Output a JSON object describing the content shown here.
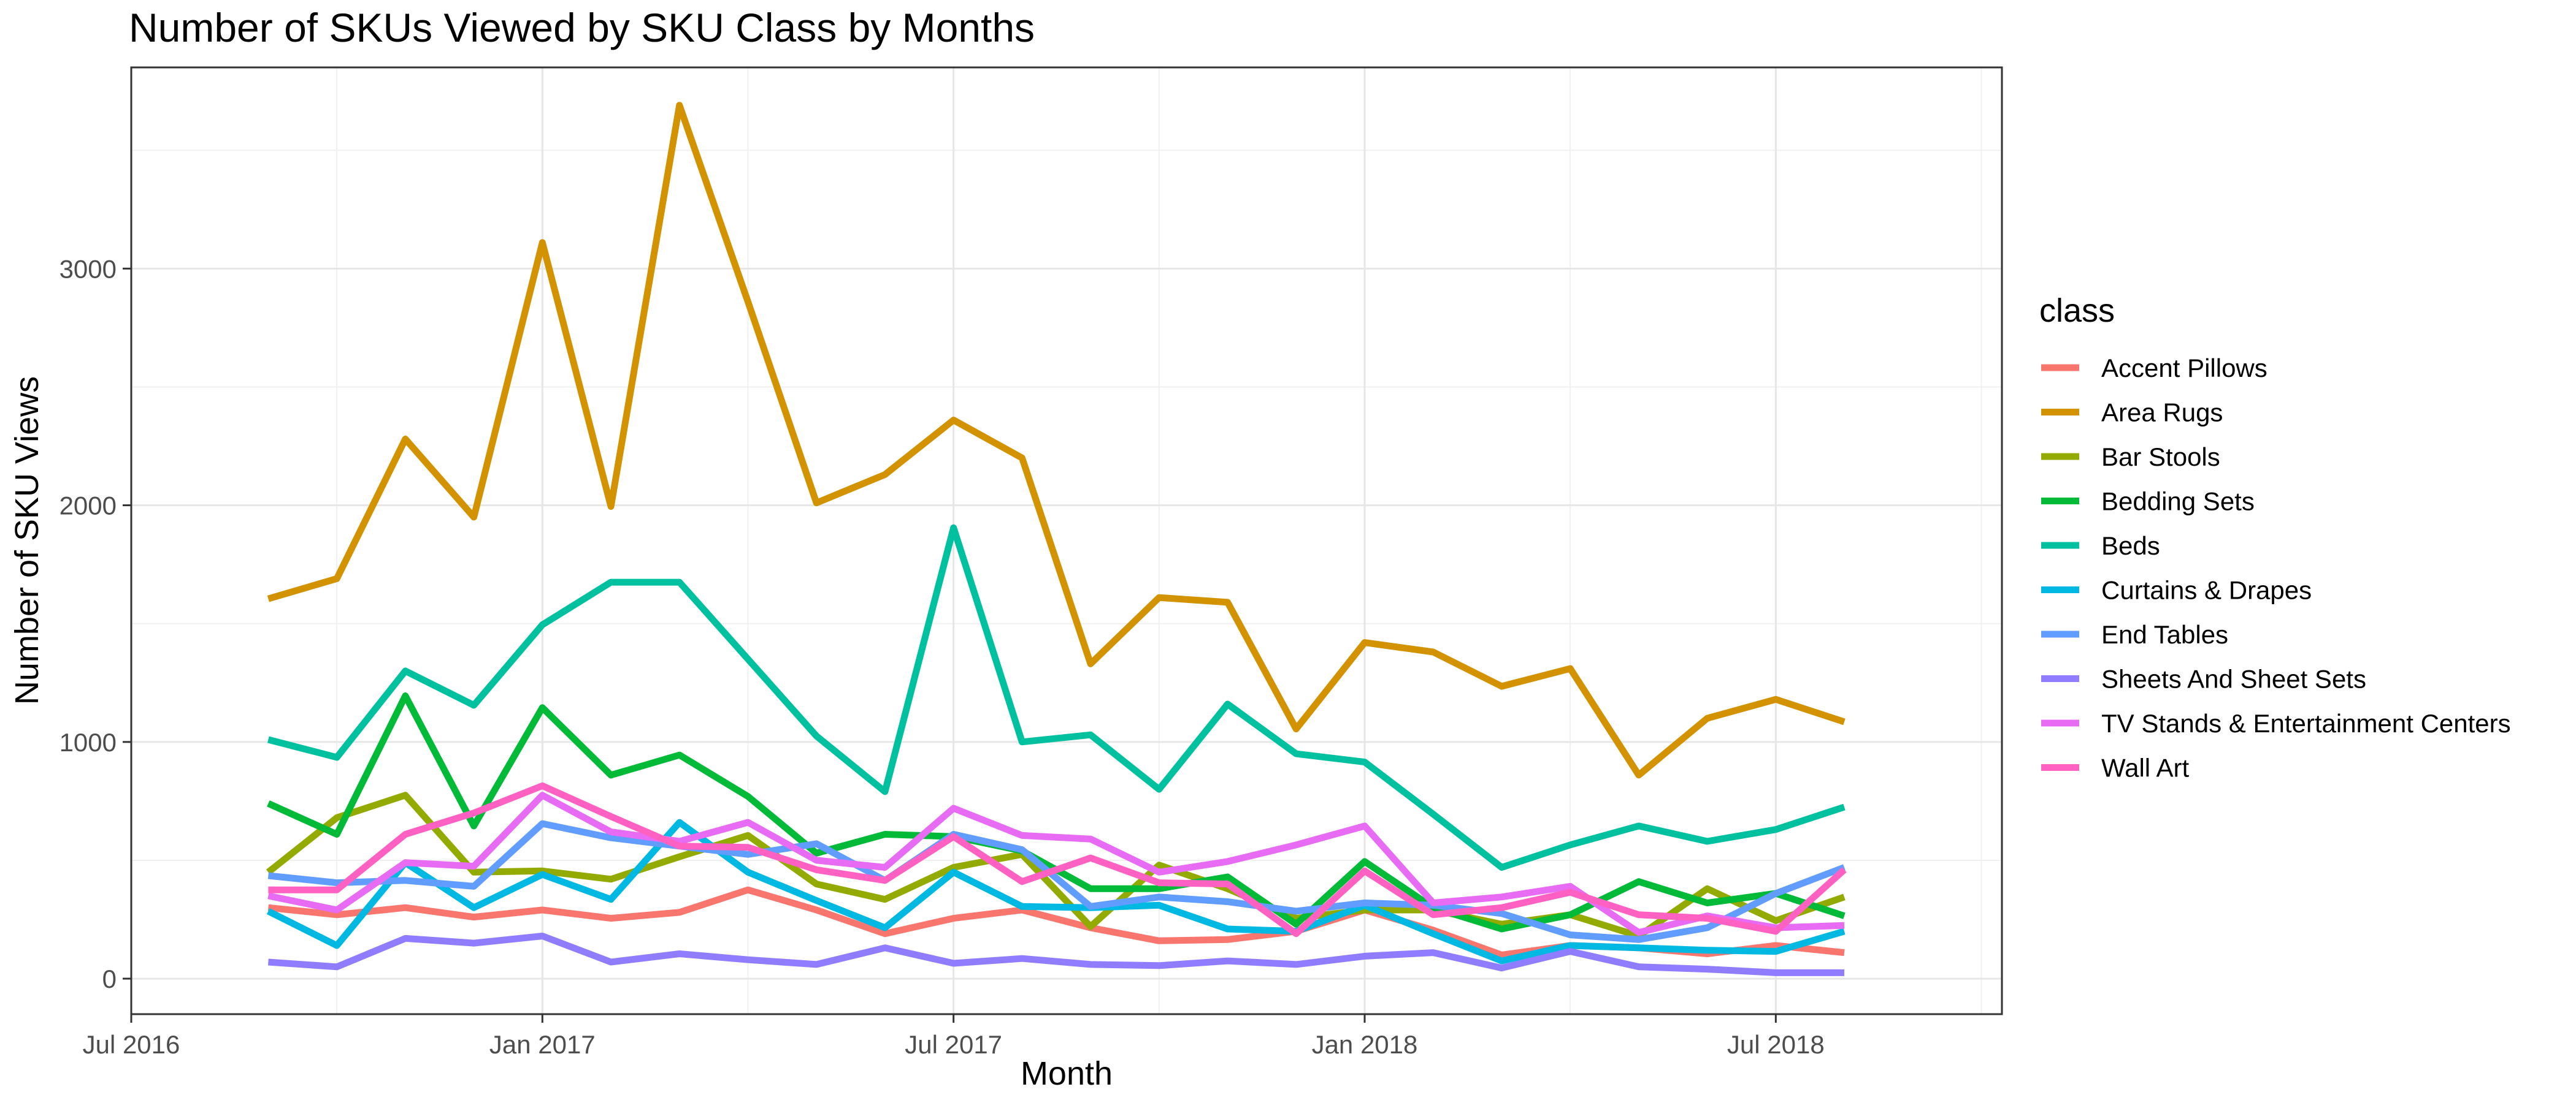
{
  "chart_data": {
    "type": "line",
    "title": "Number of SKUs Viewed by SKU Class by Months",
    "xlabel": "Month",
    "ylabel": "Number of SKU Views",
    "x_ticks": [
      "Jul 2016",
      "Jan 2017",
      "Jul 2017",
      "Jan 2018",
      "Jul 2018"
    ],
    "y_ticks": [
      "0",
      "1000",
      "2000",
      "3000"
    ],
    "ylim": [
      -150,
      3850
    ],
    "grid": true,
    "legend": {
      "title": "class",
      "position": "right"
    },
    "x": [
      "2016-09",
      "2016-10",
      "2016-11",
      "2016-12",
      "2017-01",
      "2017-02",
      "2017-03",
      "2017-04",
      "2017-05",
      "2017-06",
      "2017-07",
      "2017-08",
      "2017-09",
      "2017-10",
      "2017-11",
      "2017-12",
      "2018-01",
      "2018-02",
      "2018-03",
      "2018-04",
      "2018-05",
      "2018-06",
      "2018-07",
      "2018-08"
    ],
    "series": [
      {
        "name": "Accent Pillows",
        "color": "#F8766D",
        "values": [
          300,
          270,
          300,
          260,
          290,
          255,
          280,
          375,
          290,
          190,
          255,
          290,
          215,
          160,
          165,
          200,
          290,
          205,
          100,
          140,
          130,
          105,
          140,
          110
        ]
      },
      {
        "name": "Area Rugs",
        "color": "#D39200",
        "values": [
          1605,
          1690,
          2280,
          1950,
          3110,
          1995,
          3690,
          2860,
          2010,
          2130,
          2360,
          2200,
          1330,
          1610,
          1590,
          1055,
          1420,
          1380,
          1235,
          1310,
          860,
          1100,
          1180,
          1085
        ]
      },
      {
        "name": "Bar Stools",
        "color": "#93AA00",
        "values": [
          450,
          680,
          775,
          450,
          455,
          420,
          515,
          605,
          400,
          335,
          470,
          525,
          220,
          480,
          380,
          255,
          290,
          290,
          230,
          270,
          180,
          380,
          245,
          345
        ]
      },
      {
        "name": "Bedding Sets",
        "color": "#00BA38",
        "values": [
          740,
          610,
          1195,
          645,
          1145,
          860,
          945,
          770,
          530,
          610,
          600,
          540,
          380,
          380,
          430,
          230,
          495,
          300,
          210,
          270,
          410,
          320,
          360,
          265
        ]
      },
      {
        "name": "Beds",
        "color": "#00C19F",
        "values": [
          1010,
          935,
          1300,
          1155,
          1495,
          1675,
          1675,
          1350,
          1025,
          790,
          1905,
          1000,
          1030,
          800,
          1160,
          950,
          915,
          695,
          470,
          565,
          645,
          580,
          630,
          725
        ]
      },
      {
        "name": "Curtains & Drapes",
        "color": "#00B9E3",
        "values": [
          285,
          140,
          490,
          300,
          440,
          335,
          660,
          450,
          330,
          215,
          450,
          305,
          300,
          310,
          210,
          200,
          310,
          190,
          75,
          140,
          130,
          120,
          115,
          200
        ]
      },
      {
        "name": "End Tables",
        "color": "#619CFF",
        "values": [
          435,
          405,
          415,
          390,
          655,
          595,
          560,
          525,
          570,
          415,
          610,
          545,
          305,
          345,
          325,
          285,
          320,
          310,
          275,
          185,
          165,
          215,
          360,
          470
        ]
      },
      {
        "name": "Sheets And Sheet Sets",
        "color": "#8F7CFF",
        "values": [
          70,
          50,
          170,
          150,
          180,
          70,
          105,
          80,
          60,
          130,
          65,
          85,
          60,
          55,
          75,
          60,
          95,
          110,
          45,
          115,
          50,
          40,
          25,
          25
        ]
      },
      {
        "name": "TV Stands & Entertainment Centers",
        "color": "#E76BF3",
        "values": [
          350,
          290,
          490,
          475,
          775,
          620,
          580,
          660,
          500,
          470,
          720,
          605,
          590,
          450,
          495,
          565,
          645,
          320,
          345,
          390,
          195,
          265,
          215,
          225
        ]
      },
      {
        "name": "Wall Art",
        "color": "#FF61C3",
        "values": [
          375,
          375,
          610,
          700,
          815,
          685,
          560,
          555,
          460,
          415,
          600,
          410,
          510,
          405,
          400,
          190,
          455,
          270,
          300,
          365,
          270,
          255,
          200,
          460
        ]
      }
    ]
  }
}
